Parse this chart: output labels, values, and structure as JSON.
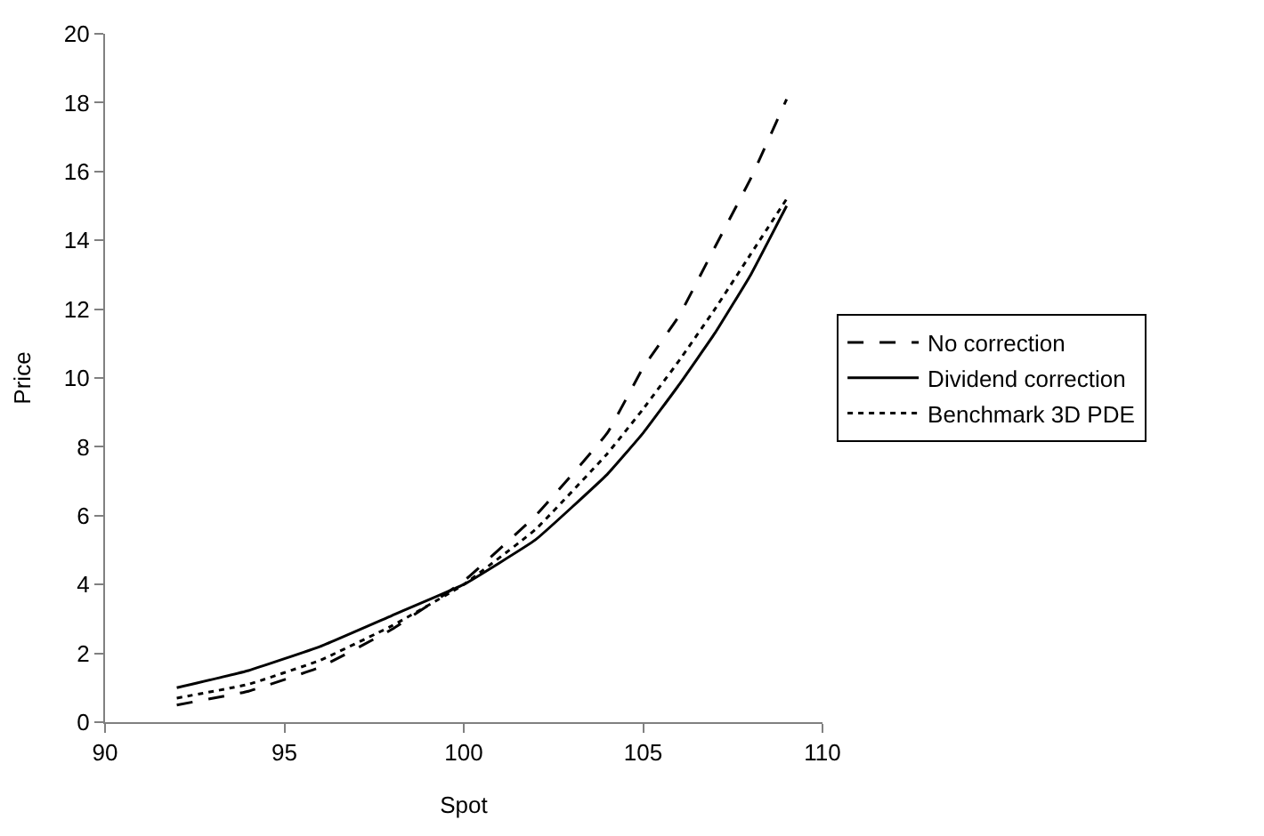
{
  "chart_data": {
    "type": "line",
    "xlabel": "Spot",
    "ylabel": "Price",
    "x": [
      92,
      94,
      96,
      98,
      100,
      102,
      104,
      105,
      106,
      107,
      108,
      109
    ],
    "series": [
      {
        "name": "No correction",
        "color": "#000000",
        "line_style": "dashed",
        "values": [
          0.5,
          0.9,
          1.6,
          2.7,
          4.1,
          6.0,
          8.4,
          10.3,
          11.8,
          13.8,
          15.8,
          18.1
        ]
      },
      {
        "name": "Dividend correction",
        "color": "#000000",
        "line_style": "solid",
        "values": [
          1.0,
          1.5,
          2.2,
          3.1,
          4.0,
          5.3,
          7.2,
          8.4,
          9.8,
          11.3,
          13.0,
          15.0
        ]
      },
      {
        "name": "Benchmark 3D PDE",
        "color": "#000000",
        "line_style": "dotted",
        "values": [
          0.7,
          1.1,
          1.8,
          2.8,
          4.0,
          5.6,
          7.8,
          9.1,
          10.5,
          12.0,
          13.6,
          15.2
        ]
      }
    ],
    "xlim": [
      90,
      110
    ],
    "xticks": [
      90,
      95,
      100,
      105,
      110
    ],
    "ylim": [
      0,
      20
    ],
    "yticks": [
      0,
      2,
      4,
      6,
      8,
      10,
      12,
      14,
      16,
      18,
      20
    ],
    "legend": "right",
    "marker": "none"
  }
}
